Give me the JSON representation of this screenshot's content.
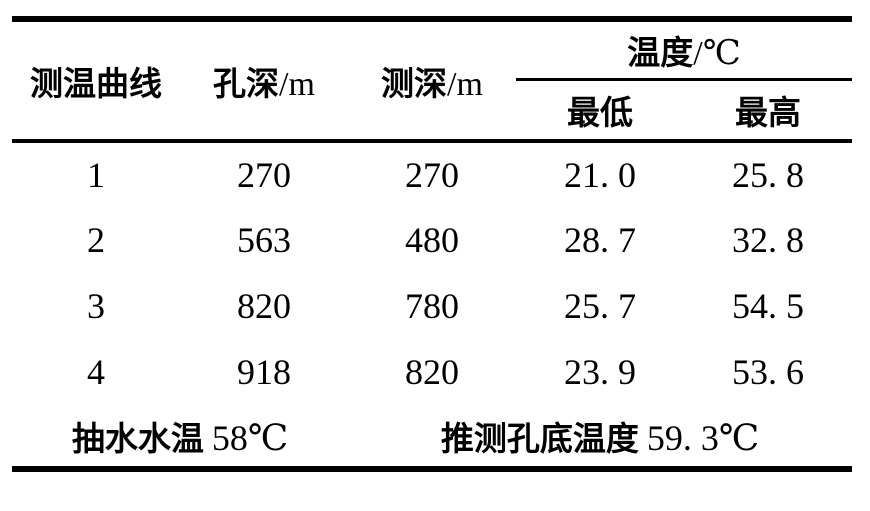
{
  "colors": {
    "ink": "#000000",
    "background": "#ffffff"
  },
  "table": {
    "header": {
      "curve_label": "测温曲线",
      "hole_depth_label": "孔深",
      "hole_depth_unit": "/m",
      "measure_depth_label": "测深",
      "measure_depth_unit": "/m",
      "temperature_group_label": "温度",
      "temperature_group_unit": "/℃",
      "min_label": "最低",
      "max_label": "最高"
    },
    "rows": [
      {
        "curve": "1",
        "hole_depth": "270",
        "measure_depth": "270",
        "temp_min": "21. 0",
        "temp_max": "25. 8"
      },
      {
        "curve": "2",
        "hole_depth": "563",
        "measure_depth": "480",
        "temp_min": "28. 7",
        "temp_max": "32. 8"
      },
      {
        "curve": "3",
        "hole_depth": "820",
        "measure_depth": "780",
        "temp_min": "25. 7",
        "temp_max": "54. 5"
      },
      {
        "curve": "4",
        "hole_depth": "918",
        "measure_depth": "820",
        "temp_min": "23. 9",
        "temp_max": "53. 6"
      }
    ],
    "footer": {
      "pumping_label": "抽水水温",
      "pumping_value": "58℃",
      "inferred_label": "推测孔底温度",
      "inferred_value": "59. 3℃"
    }
  }
}
